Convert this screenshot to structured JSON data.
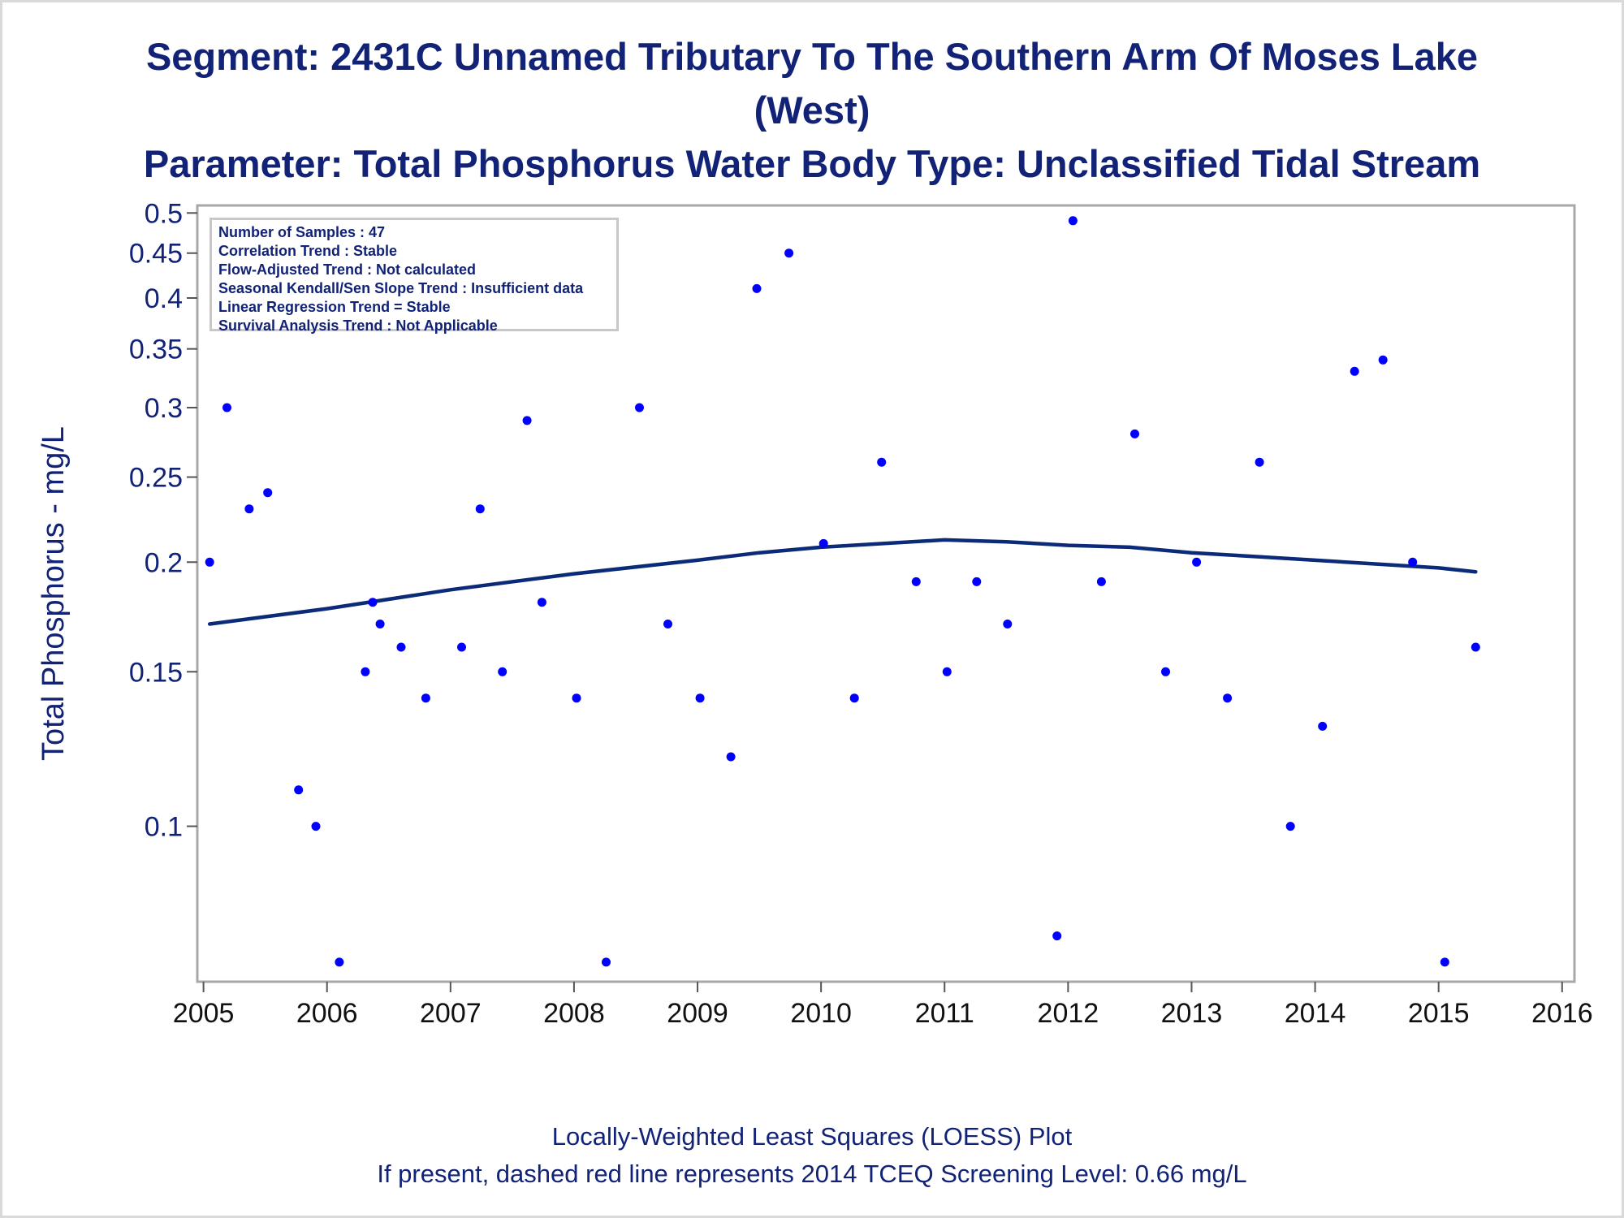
{
  "chart_data": {
    "type": "scatter",
    "title_lines": [
      "Segment: 2431C  Unnamed Tributary To The Southern Arm Of Moses Lake",
      "(West)",
      "Parameter: Total Phosphorus   Water Body Type: Unclassified Tidal Stream"
    ],
    "ylabel": "Total Phosphorus - mg/L",
    "xlabel": "",
    "yscale": "log",
    "ylim": [
      0.0665,
      0.51
    ],
    "xlim": [
      2004.95,
      2016.1
    ],
    "x_ticks": [
      2005,
      2006,
      2007,
      2008,
      2009,
      2010,
      2011,
      2012,
      2013,
      2014,
      2015,
      2016
    ],
    "x_tick_labels": [
      "2005",
      "2006",
      "2007",
      "2008",
      "2009",
      "2010",
      "2011",
      "2012",
      "2013",
      "2014",
      "2015",
      "2016"
    ],
    "y_ticks": [
      0.1,
      0.15,
      0.2,
      0.25,
      0.3,
      0.35,
      0.4,
      0.45,
      0.5
    ],
    "y_tick_labels": [
      "0.1",
      "0.15",
      "0.2",
      "0.25",
      "0.3",
      "0.35",
      "0.4",
      "0.45",
      "0.5"
    ],
    "grid": false,
    "point_color": "#0000ff",
    "line_color": "#0b2a78",
    "stats_box": [
      "Number of Samples : 47",
      "Correlation Trend : Stable",
      "Flow-Adjusted Trend : Not calculated",
      "Seasonal Kendall/Sen Slope Trend : Insufficient data",
      "Linear Regression Trend = Stable",
      "Survival Analysis Trend : Not Applicable"
    ],
    "footnotes": [
      "Locally-Weighted Least Squares (LOESS) Plot",
      "If present, dashed red line represents 2014 TCEQ Screening Level: 0.66 mg/L"
    ],
    "series": [
      {
        "type": "scatter",
        "points": [
          {
            "x": 2005.05,
            "y": 0.2
          },
          {
            "x": 2005.19,
            "y": 0.3
          },
          {
            "x": 2005.37,
            "y": 0.23
          },
          {
            "x": 2005.52,
            "y": 0.24
          },
          {
            "x": 2005.77,
            "y": 0.11
          },
          {
            "x": 2005.91,
            "y": 0.1
          },
          {
            "x": 2006.1,
            "y": 0.07
          },
          {
            "x": 2006.31,
            "y": 0.15
          },
          {
            "x": 2006.37,
            "y": 0.18
          },
          {
            "x": 2006.43,
            "y": 0.17
          },
          {
            "x": 2006.6,
            "y": 0.16
          },
          {
            "x": 2006.8,
            "y": 0.14
          },
          {
            "x": 2007.09,
            "y": 0.16
          },
          {
            "x": 2007.24,
            "y": 0.23
          },
          {
            "x": 2007.42,
            "y": 0.15
          },
          {
            "x": 2007.62,
            "y": 0.29
          },
          {
            "x": 2007.74,
            "y": 0.18
          },
          {
            "x": 2008.02,
            "y": 0.14
          },
          {
            "x": 2008.26,
            "y": 0.07
          },
          {
            "x": 2008.53,
            "y": 0.3
          },
          {
            "x": 2008.76,
            "y": 0.17
          },
          {
            "x": 2009.02,
            "y": 0.14
          },
          {
            "x": 2009.27,
            "y": 0.12
          },
          {
            "x": 2009.48,
            "y": 0.41
          },
          {
            "x": 2009.74,
            "y": 0.45
          },
          {
            "x": 2010.02,
            "y": 0.21
          },
          {
            "x": 2010.27,
            "y": 0.14
          },
          {
            "x": 2010.49,
            "y": 0.26
          },
          {
            "x": 2010.77,
            "y": 0.19
          },
          {
            "x": 2011.02,
            "y": 0.15
          },
          {
            "x": 2011.26,
            "y": 0.19
          },
          {
            "x": 2011.51,
            "y": 0.17
          },
          {
            "x": 2011.91,
            "y": 0.075
          },
          {
            "x": 2012.04,
            "y": 0.49
          },
          {
            "x": 2012.27,
            "y": 0.19
          },
          {
            "x": 2012.54,
            "y": 0.28
          },
          {
            "x": 2012.79,
            "y": 0.15
          },
          {
            "x": 2013.04,
            "y": 0.2
          },
          {
            "x": 2013.29,
            "y": 0.14
          },
          {
            "x": 2013.55,
            "y": 0.26
          },
          {
            "x": 2013.8,
            "y": 0.1
          },
          {
            "x": 2014.06,
            "y": 0.13
          },
          {
            "x": 2014.32,
            "y": 0.33
          },
          {
            "x": 2014.55,
            "y": 0.34
          },
          {
            "x": 2014.79,
            "y": 0.2
          },
          {
            "x": 2015.05,
            "y": 0.07
          },
          {
            "x": 2015.3,
            "y": 0.16
          }
        ]
      },
      {
        "type": "line",
        "points": [
          {
            "x": 2005.05,
            "y": 0.17
          },
          {
            "x": 2006.0,
            "y": 0.177
          },
          {
            "x": 2007.0,
            "y": 0.186
          },
          {
            "x": 2008.0,
            "y": 0.194
          },
          {
            "x": 2009.0,
            "y": 0.201
          },
          {
            "x": 2009.5,
            "y": 0.205
          },
          {
            "x": 2010.0,
            "y": 0.208
          },
          {
            "x": 2010.5,
            "y": 0.21
          },
          {
            "x": 2011.0,
            "y": 0.212
          },
          {
            "x": 2011.5,
            "y": 0.211
          },
          {
            "x": 2012.0,
            "y": 0.209
          },
          {
            "x": 2012.5,
            "y": 0.208
          },
          {
            "x": 2013.0,
            "y": 0.205
          },
          {
            "x": 2013.5,
            "y": 0.203
          },
          {
            "x": 2014.0,
            "y": 0.201
          },
          {
            "x": 2014.5,
            "y": 0.199
          },
          {
            "x": 2015.0,
            "y": 0.197
          },
          {
            "x": 2015.3,
            "y": 0.195
          }
        ]
      }
    ]
  }
}
